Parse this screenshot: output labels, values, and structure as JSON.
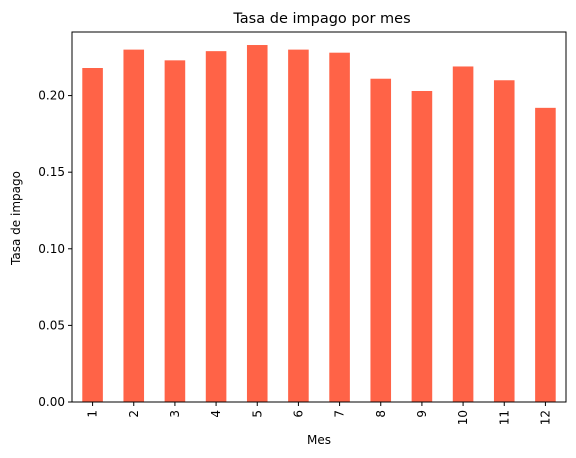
{
  "chart_data": {
    "type": "bar",
    "title": "Tasa de impago por mes",
    "xlabel": "Mes",
    "ylabel": "Tasa de impago",
    "categories": [
      "1",
      "2",
      "3",
      "4",
      "5",
      "6",
      "7",
      "8",
      "9",
      "10",
      "11",
      "12"
    ],
    "values": [
      0.218,
      0.23,
      0.223,
      0.229,
      0.233,
      0.23,
      0.228,
      0.211,
      0.203,
      0.219,
      0.21,
      0.192
    ],
    "ylim": [
      0,
      0.2415
    ],
    "yticks": [
      0.0,
      0.05,
      0.1,
      0.15,
      0.2
    ],
    "ytick_labels": [
      "0.00",
      "0.05",
      "0.10",
      "0.15",
      "0.20"
    ],
    "bar_color": "#ff6347",
    "grid": false,
    "legend": "none"
  }
}
